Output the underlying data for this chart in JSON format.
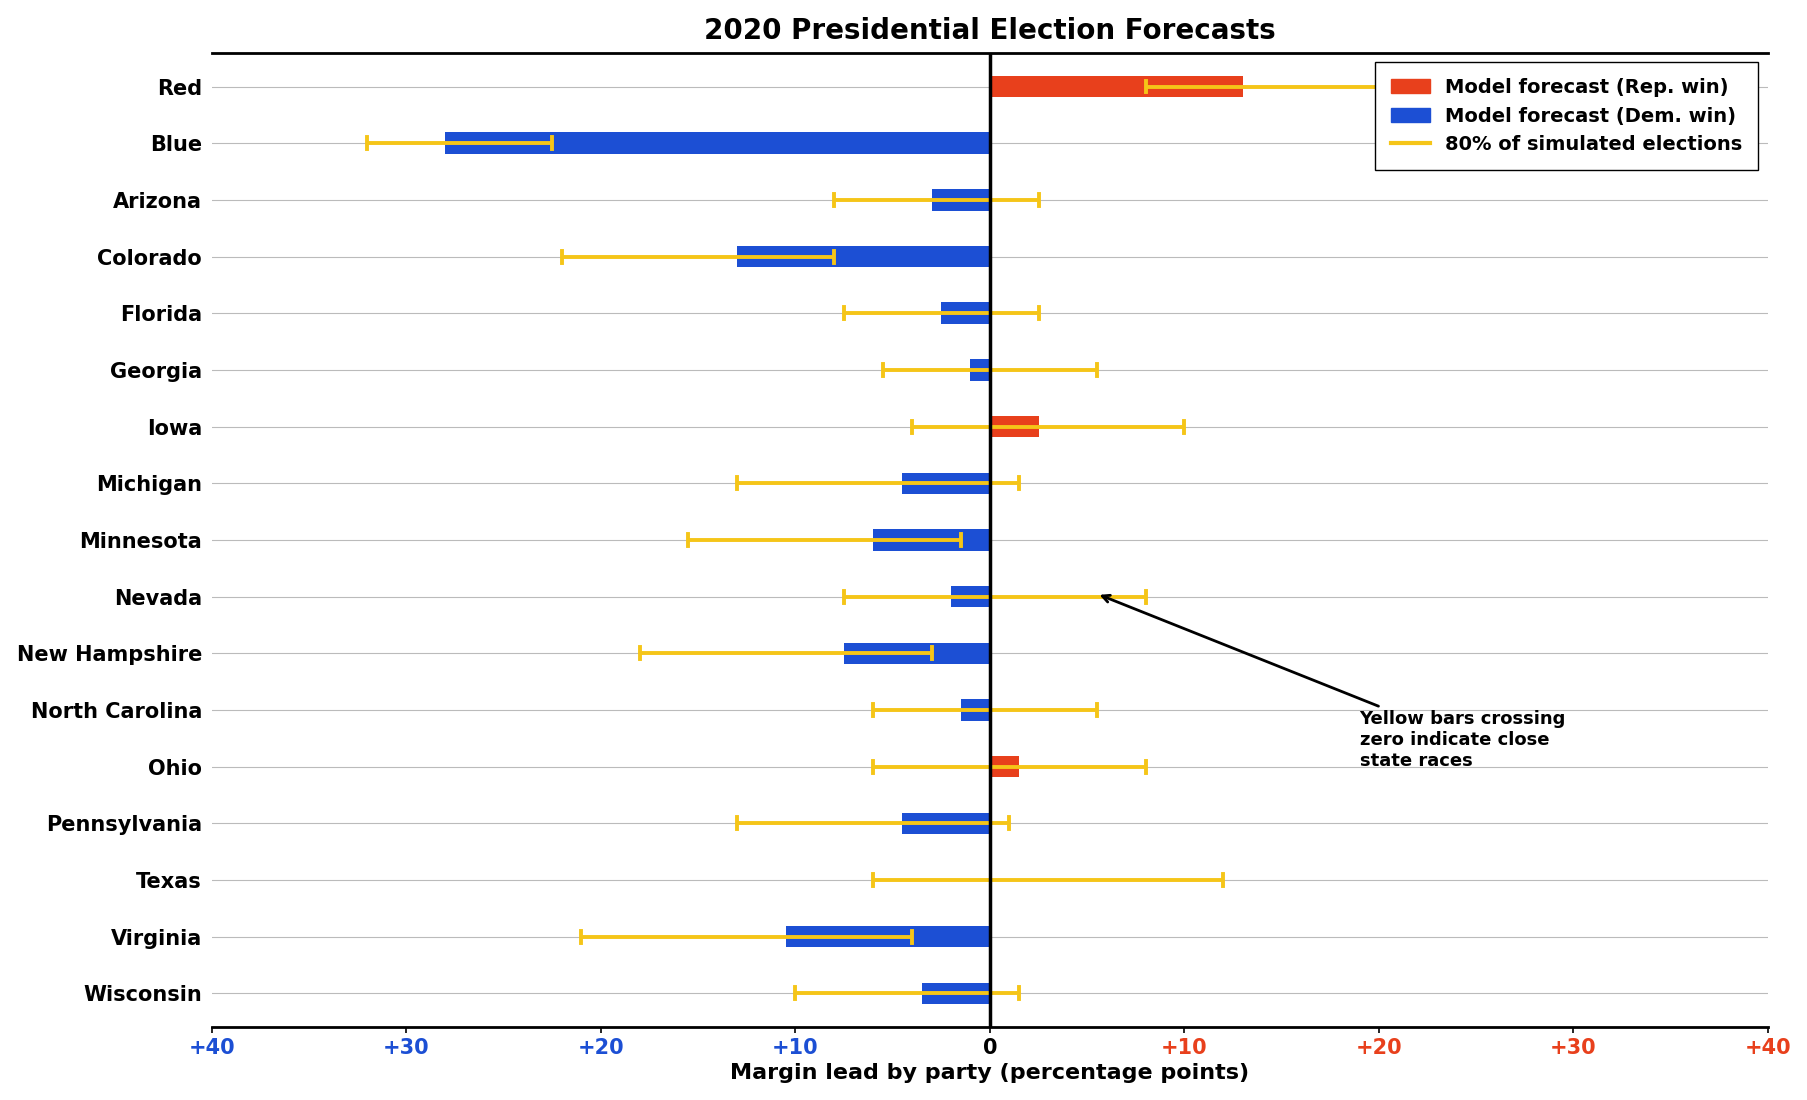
{
  "title": "2020 Presidential Election Forecasts",
  "xlabel": "Margin lead by party (percentage points)",
  "states": [
    "Red",
    "Blue",
    "Arizona",
    "Colorado",
    "Florida",
    "Georgia",
    "Iowa",
    "Michigan",
    "Minnesota",
    "Nevada",
    "New Hampshire",
    "North Carolina",
    "Ohio",
    "Pennsylvania",
    "Texas",
    "Virginia",
    "Wisconsin"
  ],
  "bar_values": [
    13.0,
    -28.0,
    -3.0,
    -13.0,
    -2.5,
    -1.0,
    2.5,
    -4.5,
    -6.0,
    -2.0,
    -7.5,
    -1.5,
    1.5,
    -4.5,
    0.0,
    -10.5,
    -3.5
  ],
  "bar_colors": [
    "#E8401C",
    "#1C4FD4",
    "#1C4FD4",
    "#1C4FD4",
    "#1C4FD4",
    "#1C4FD4",
    "#E8401C",
    "#1C4FD4",
    "#1C4FD4",
    "#1C4FD4",
    "#1C4FD4",
    "#1C4FD4",
    "#E8401C",
    "#1C4FD4",
    "none",
    "#1C4FD4",
    "#1C4FD4"
  ],
  "err_low": [
    8.0,
    -32.0,
    -8.0,
    -22.0,
    -7.5,
    -5.5,
    -4.0,
    -13.0,
    -15.5,
    -7.5,
    -18.0,
    -6.0,
    -6.0,
    -13.0,
    -6.0,
    -21.0,
    -10.0
  ],
  "err_high": [
    20.0,
    -22.5,
    2.5,
    -8.0,
    2.5,
    5.5,
    10.0,
    1.5,
    -1.5,
    8.0,
    -3.0,
    5.5,
    8.0,
    1.0,
    12.0,
    -4.0,
    1.5
  ],
  "xlim": [
    -40,
    40
  ],
  "xticks": [
    -40,
    -30,
    -20,
    -10,
    0,
    10,
    20,
    30,
    40
  ],
  "legend_labels": [
    "Model forecast (Rep. win)",
    "Model forecast (Dem. win)",
    "80% of simulated elections"
  ],
  "legend_colors": [
    "#E8401C",
    "#1C4FD4",
    "#F5C518"
  ],
  "annotation_text": "Yellow bars crossing\nzero indicate close\nstate races",
  "bar_height": 0.38,
  "error_bar_color": "#F5C518",
  "error_bar_linewidth": 2.8,
  "grid_color": "#BBBBBB",
  "background_color": "#FFFFFF",
  "title_fontsize": 20,
  "label_fontsize": 16,
  "ylabel_fontsize": 15,
  "tick_fontsize": 15,
  "legend_fontsize": 14,
  "annot_fontsize": 13
}
